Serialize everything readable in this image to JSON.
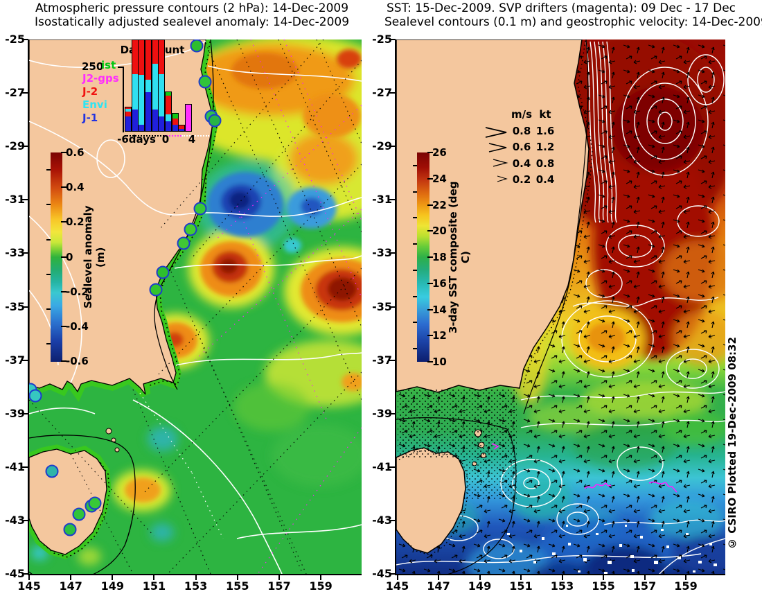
{
  "left_panel": {
    "title_line1": "Atmospheric pressure contours (2 hPa): 14-Dec-2009",
    "title_line2": "Isostatically adjusted sealevel anomaly: 14-Dec-2009",
    "colorbar": {
      "label": "Sealevel anomaly (m)",
      "ticks": [
        "0.6",
        "0.4",
        "0.2",
        "0",
        "-0.2",
        "-0.4",
        "-0.6"
      ]
    },
    "histogram": {
      "title": "Data count",
      "y_tick": "250",
      "x_labels": [
        "-6days",
        "0",
        "4"
      ],
      "legend": [
        {
          "label": "ist",
          "color": "#00C814"
        },
        {
          "label": "J2-gps",
          "color": "#FF2CFF"
        },
        {
          "label": "J-2",
          "color": "#F01210"
        },
        {
          "label": "Envi",
          "color": "#2EE4F2"
        },
        {
          "label": "J-1",
          "color": "#2333E0"
        }
      ],
      "series_colors": {
        "J1": "#2020DC",
        "Envi": "#30E0F0",
        "J2": "#EE1010",
        "G": "#10C814",
        "J2gps": "#FF30FF"
      },
      "y_max_tick_value": 250,
      "bars": [
        {
          "day": -6,
          "segments": [
            [
              "J1",
              57
            ],
            [
              "J2",
              18
            ],
            [
              "Envi",
              10
            ],
            [
              "J2",
              8
            ]
          ]
        },
        {
          "day": -5,
          "segments": [
            [
              "J1",
              82
            ],
            [
              "Envi",
              131
            ],
            [
              "J2",
              130
            ]
          ]
        },
        {
          "day": -4,
          "segments": [
            [
              "J1",
              26
            ],
            [
              "Envi",
              186
            ],
            [
              "J2",
              131
            ]
          ]
        },
        {
          "day": -3,
          "segments": [
            [
              "J1",
              147
            ],
            [
              "Envi",
              46
            ],
            [
              "J2",
              150
            ]
          ]
        },
        {
          "day": -2,
          "segments": [
            [
              "J1",
              82
            ],
            [
              "Envi",
              170
            ],
            [
              "J2",
              90
            ]
          ]
        },
        {
          "day": -1,
          "segments": [
            [
              "J1",
              57
            ],
            [
              "Envi",
              157
            ],
            [
              "J2",
              129
            ]
          ]
        },
        {
          "day": 0,
          "segments": [
            [
              "J1",
              39
            ],
            [
              "Envi",
              26
            ],
            [
              "J2",
              70
            ],
            [
              "G",
              15
            ]
          ]
        },
        {
          "day": 1,
          "segments": [
            [
              "J1",
              26
            ],
            [
              "J2",
              23
            ],
            [
              "G",
              22
            ]
          ]
        },
        {
          "day": 2,
          "segments": [
            [
              "J1",
              10
            ],
            [
              "J2",
              16
            ]
          ]
        },
        {
          "day": 3,
          "segments": [
            [
              "J2gps",
              103
            ]
          ]
        }
      ]
    }
  },
  "right_panel": {
    "title_line1": "SST: 15-Dec-2009. SVP drifters (magenta): 09 Dec - 17 Dec",
    "title_line2": "Sealevel contours (0.1 m) and geostrophic velocity: 14-Dec-2009.",
    "colorbar": {
      "label": "3-day SST composite (deg C)",
      "ticks": [
        "26",
        "24",
        "22",
        "20",
        "18",
        "16",
        "14",
        "12",
        "10"
      ]
    },
    "velocity_legend": {
      "col1_header": "m/s",
      "col2_header": "kt",
      "rows": [
        [
          "0.8",
          "1.6"
        ],
        [
          "0.6",
          "1.2"
        ],
        [
          "0.4",
          "0.8"
        ],
        [
          "0.2",
          "0.4"
        ]
      ]
    },
    "credit": "© CSIRO Plotted 19-Dec-2009 08:32"
  },
  "axes": {
    "lat_labels": [
      "-25",
      "-27",
      "-29",
      "-31",
      "-33",
      "-35",
      "-37",
      "-39",
      "-41",
      "-43",
      "-45"
    ],
    "lon_labels": [
      "145",
      "147",
      "149",
      "151",
      "153",
      "155",
      "157",
      "159"
    ]
  },
  "colors": {
    "land": "#F4C79E",
    "ocean_base_left": "#2DB441",
    "drifter_magenta": "#FF20FF",
    "contour_white": "#FFFFFF",
    "coastline_black": "#000000"
  }
}
